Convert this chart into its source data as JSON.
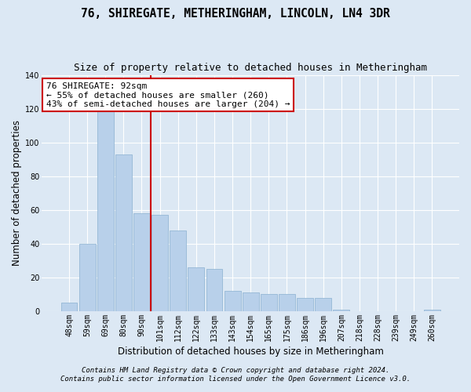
{
  "title": "76, SHIREGATE, METHERINGHAM, LINCOLN, LN4 3DR",
  "subtitle": "Size of property relative to detached houses in Metheringham",
  "xlabel": "Distribution of detached houses by size in Metheringham",
  "ylabel": "Number of detached properties",
  "categories": [
    "48sqm",
    "59sqm",
    "69sqm",
    "80sqm",
    "90sqm",
    "101sqm",
    "112sqm",
    "122sqm",
    "133sqm",
    "143sqm",
    "154sqm",
    "165sqm",
    "175sqm",
    "186sqm",
    "196sqm",
    "207sqm",
    "218sqm",
    "228sqm",
    "239sqm",
    "249sqm",
    "260sqm"
  ],
  "values": [
    5,
    40,
    125,
    93,
    58,
    57,
    48,
    26,
    25,
    12,
    11,
    10,
    10,
    8,
    8,
    1,
    0,
    0,
    0,
    0,
    1
  ],
  "bar_color": "#b8d0ea",
  "bar_edge_color": "#8ab0d0",
  "vline_index": 4,
  "vline_color": "#cc0000",
  "annotation_line1": "76 SHIREGATE: 92sqm",
  "annotation_line2": "← 55% of detached houses are smaller (260)",
  "annotation_line3": "43% of semi-detached houses are larger (204) →",
  "annotation_box_facecolor": "#ffffff",
  "annotation_box_edgecolor": "#cc0000",
  "ylim": [
    0,
    140
  ],
  "yticks": [
    0,
    20,
    40,
    60,
    80,
    100,
    120,
    140
  ],
  "background_color": "#dce8f4",
  "plot_background_color": "#dce8f4",
  "grid_color": "#ffffff",
  "footer_line1": "Contains HM Land Registry data © Crown copyright and database right 2024.",
  "footer_line2": "Contains public sector information licensed under the Open Government Licence v3.0.",
  "title_fontsize": 10.5,
  "subtitle_fontsize": 9,
  "annotation_fontsize": 8,
  "ylabel_fontsize": 8.5,
  "xlabel_fontsize": 8.5,
  "tick_fontsize": 7,
  "footer_fontsize": 6.5
}
